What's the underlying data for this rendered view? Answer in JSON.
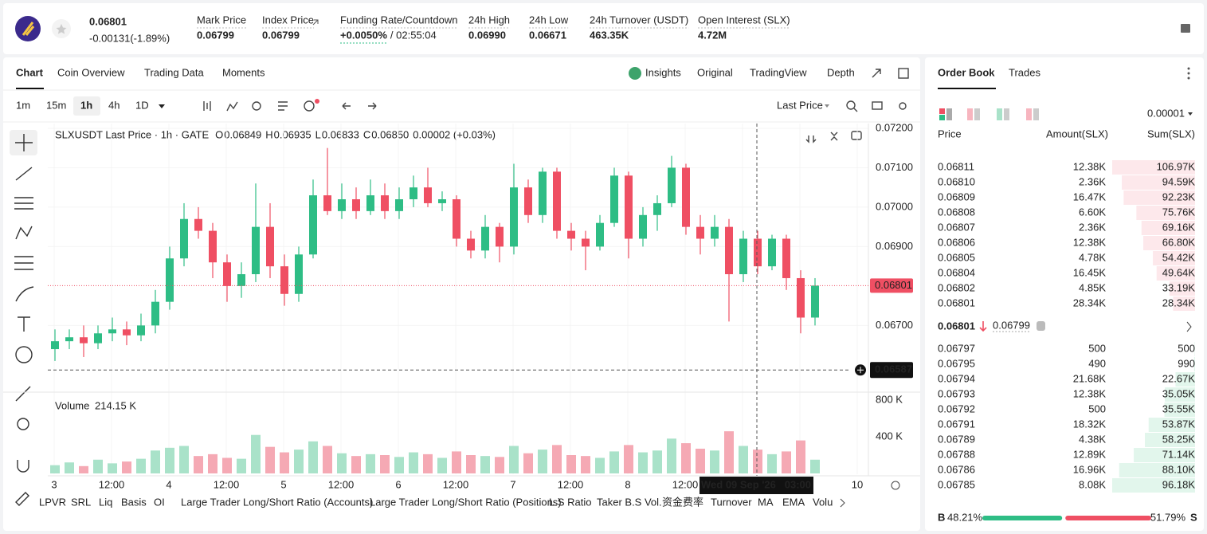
{
  "header": {
    "price": "0.06801",
    "change": "-0.00131(-1.89%)",
    "stats": [
      {
        "label": "Mark Price",
        "value": "0.06799"
      },
      {
        "label": "Index Price",
        "value": "0.06799"
      },
      {
        "label": "Funding Rate/Countdown",
        "value": "+0.0050%",
        "extra": "/ 02:55:04"
      },
      {
        "label": "24h High",
        "value": "0.06990"
      },
      {
        "label": "24h Low",
        "value": "0.06671"
      },
      {
        "label": "24h Turnover (USDT)",
        "value": "463.35K"
      },
      {
        "label": "Open Interest (SLX)",
        "value": "4.72M"
      }
    ]
  },
  "chart_tabs": [
    "Chart",
    "Coin Overview",
    "Trading Data",
    "Moments"
  ],
  "view_tabs": [
    "Insights",
    "Original",
    "TradingView",
    "Depth"
  ],
  "intervals": [
    "1m",
    "15m",
    "1h",
    "4h",
    "1D"
  ],
  "price_source": "Last Price",
  "legend": {
    "symbol": "SLXUSDT Last Price · 1h · GATE",
    "ohlc": [
      {
        "label": "O",
        "value": "0.06849"
      },
      {
        "label": "H",
        "value": "0.06935"
      },
      {
        "label": "L",
        "value": "0.06833"
      },
      {
        "label": "C",
        "value": "0.06850"
      }
    ],
    "change": "0.00002 (+0.03%)"
  },
  "chart_data": {
    "type": "candlestick",
    "candles": [
      [
        0.0664,
        0.0669,
        0.0661,
        0.0666
      ],
      [
        0.0666,
        0.0669,
        0.0664,
        0.0667
      ],
      [
        0.0667,
        0.067,
        0.0662,
        0.06655
      ],
      [
        0.06655,
        0.067,
        0.0664,
        0.0668
      ],
      [
        0.0668,
        0.0672,
        0.0666,
        0.0669
      ],
      [
        0.0669,
        0.0671,
        0.0665,
        0.06675
      ],
      [
        0.06675,
        0.0673,
        0.0666,
        0.067
      ],
      [
        0.067,
        0.0679,
        0.0668,
        0.0676
      ],
      [
        0.0676,
        0.069,
        0.0674,
        0.0687
      ],
      [
        0.0687,
        0.0701,
        0.0685,
        0.0697
      ],
      [
        0.0697,
        0.07,
        0.0692,
        0.0694
      ],
      [
        0.0694,
        0.0696,
        0.0682,
        0.0686
      ],
      [
        0.0686,
        0.0688,
        0.0676,
        0.068
      ],
      [
        0.068,
        0.0686,
        0.0677,
        0.0683
      ],
      [
        0.0683,
        0.0706,
        0.0681,
        0.0695
      ],
      [
        0.0695,
        0.0701,
        0.0682,
        0.0685
      ],
      [
        0.0685,
        0.0688,
        0.0675,
        0.0678
      ],
      [
        0.0678,
        0.069,
        0.0676,
        0.0688
      ],
      [
        0.0688,
        0.0707,
        0.0687,
        0.0703
      ],
      [
        0.0703,
        0.0715,
        0.0698,
        0.0699
      ],
      [
        0.0699,
        0.0706,
        0.0697,
        0.0702
      ],
      [
        0.0702,
        0.0705,
        0.0697,
        0.0699
      ],
      [
        0.0699,
        0.0707,
        0.0698,
        0.0703
      ],
      [
        0.0703,
        0.0706,
        0.0697,
        0.0699
      ],
      [
        0.0699,
        0.0705,
        0.0697,
        0.0702
      ],
      [
        0.0702,
        0.0708,
        0.07,
        0.0705
      ],
      [
        0.0705,
        0.071,
        0.07,
        0.0701
      ],
      [
        0.0701,
        0.0704,
        0.0699,
        0.0702
      ],
      [
        0.0702,
        0.0703,
        0.069,
        0.0692
      ],
      [
        0.0692,
        0.0694,
        0.0687,
        0.0689
      ],
      [
        0.0689,
        0.0698,
        0.0687,
        0.0695
      ],
      [
        0.0695,
        0.0696,
        0.0686,
        0.069
      ],
      [
        0.069,
        0.0711,
        0.0688,
        0.0705
      ],
      [
        0.0705,
        0.0707,
        0.0696,
        0.0698
      ],
      [
        0.0698,
        0.071,
        0.0696,
        0.0709
      ],
      [
        0.0709,
        0.071,
        0.0692,
        0.0694
      ],
      [
        0.0694,
        0.0696,
        0.0689,
        0.0692
      ],
      [
        0.0692,
        0.0694,
        0.0684,
        0.069
      ],
      [
        0.069,
        0.0698,
        0.0689,
        0.0696
      ],
      [
        0.0696,
        0.071,
        0.0695,
        0.0708
      ],
      [
        0.0708,
        0.0709,
        0.0687,
        0.0692
      ],
      [
        0.0692,
        0.07,
        0.069,
        0.0698
      ],
      [
        0.0698,
        0.0703,
        0.0694,
        0.0701
      ],
      [
        0.0701,
        0.0713,
        0.07,
        0.071
      ],
      [
        0.071,
        0.0711,
        0.0693,
        0.0695
      ],
      [
        0.0695,
        0.0698,
        0.0688,
        0.0692
      ],
      [
        0.0692,
        0.0698,
        0.069,
        0.0695
      ],
      [
        0.0695,
        0.0697,
        0.0671,
        0.0683
      ],
      [
        0.0683,
        0.0694,
        0.0681,
        0.0692
      ],
      [
        0.0692,
        0.0694,
        0.0683,
        0.0685
      ],
      [
        0.0685,
        0.0693,
        0.0684,
        0.0692
      ],
      [
        0.0692,
        0.0693,
        0.0679,
        0.0682
      ],
      [
        0.0682,
        0.0684,
        0.0668,
        0.0672
      ],
      [
        0.0672,
        0.0682,
        0.067,
        0.06801
      ]
    ],
    "up_color": "#2ebd85",
    "down_color": "#ef4f63",
    "ylim": [
      0.06535,
      0.07212
    ],
    "yticks": [
      {
        "value": 0.067,
        "label": "0.06700"
      },
      {
        "value": 0.069,
        "label": "0.06900"
      },
      {
        "value": 0.07,
        "label": "0.07000"
      },
      {
        "value": 0.071,
        "label": "0.07100"
      },
      {
        "value": 0.072,
        "label": "0.07200"
      }
    ],
    "last_price": 0.06801,
    "crosshair": {
      "price": 0.06587,
      "time": "Wed 09 Sep '26   03:00"
    },
    "xtick_labels": [
      "3",
      "12:00",
      "4",
      "12:00",
      "5",
      "12:00",
      "6",
      "12:00",
      "7",
      "12:00",
      "8",
      "12:00",
      null,
      null,
      "10"
    ],
    "volume": {
      "title": "Volume",
      "value_label": "214.15 K",
      "values": [
        90,
        120,
        80,
        150,
        110,
        130,
        160,
        250,
        280,
        300,
        190,
        210,
        170,
        160,
        420,
        290,
        230,
        260,
        350,
        300,
        220,
        190,
        210,
        200,
        180,
        230,
        210,
        170,
        240,
        200,
        190,
        180,
        300,
        220,
        260,
        310,
        200,
        190,
        170,
        240,
        310,
        230,
        250,
        380,
        330,
        270,
        250,
        460,
        300,
        260,
        210,
        240,
        360,
        150
      ],
      "ylim": [
        0,
        861
      ],
      "yticks": [
        {
          "value": 400,
          "label": "400 K"
        },
        {
          "value": 800,
          "label": "800 K"
        }
      ]
    }
  },
  "indicators": [
    "LPVR",
    "SRL",
    "Liq",
    "Basis",
    "OI",
    "Large Trader Long/Short Ratio (Accounts)",
    "Large Trader Long/Short Ratio (Positions)",
    "L.S Ratio",
    "Taker B.S Vol.",
    "资金费率",
    "Turnover",
    "MA",
    "EMA",
    "Volu"
  ],
  "order_book": {
    "tabs": [
      "Order Book",
      "Trades"
    ],
    "precision": "0.00001",
    "columns": [
      "Price",
      "Amount(SLX)",
      "Sum(SLX)"
    ],
    "asks": {
      "prices": [
        "0.06811",
        "0.06810",
        "0.06809",
        "0.06808",
        "0.06807",
        "0.06806",
        "0.06805",
        "0.06804",
        "0.06802",
        "0.06801"
      ],
      "amounts": [
        "12.38K",
        "2.36K",
        "16.47K",
        "6.60K",
        "2.36K",
        "12.38K",
        "4.78K",
        "16.45K",
        "4.85K",
        "28.34K"
      ],
      "sums": [
        106.97,
        94.59,
        92.23,
        75.76,
        69.16,
        66.8,
        54.42,
        49.64,
        33.19,
        28.34
      ],
      "sum_labels": [
        "106.97K",
        "94.59K",
        "92.23K",
        "75.76K",
        "69.16K",
        "66.80K",
        "54.42K",
        "49.64K",
        "33.19K",
        "28.34K"
      ]
    },
    "mid": {
      "price": "0.06801",
      "mark": "0.06799"
    },
    "bids": {
      "prices": [
        "0.06797",
        "0.06795",
        "0.06794",
        "0.06793",
        "0.06792",
        "0.06791",
        "0.06789",
        "0.06788",
        "0.06786",
        "0.06785"
      ],
      "amounts": [
        "500",
        "490",
        "21.68K",
        "12.38K",
        "500",
        "18.32K",
        "4.38K",
        "12.89K",
        "16.96K",
        "8.08K"
      ],
      "sums": [
        0.5,
        0.99,
        22.67,
        35.05,
        35.55,
        53.87,
        58.25,
        71.14,
        88.1,
        96.18
      ],
      "sum_labels": [
        "500",
        "990",
        "22.67K",
        "35.05K",
        "35.55K",
        "53.87K",
        "58.25K",
        "71.14K",
        "88.10K",
        "96.18K"
      ]
    },
    "ratio": {
      "buy_letter": "B",
      "buy": 48.21,
      "buy_label": "48.21%",
      "sell": 51.79,
      "sell_label": "51.79%",
      "sell_letter": "S"
    }
  }
}
